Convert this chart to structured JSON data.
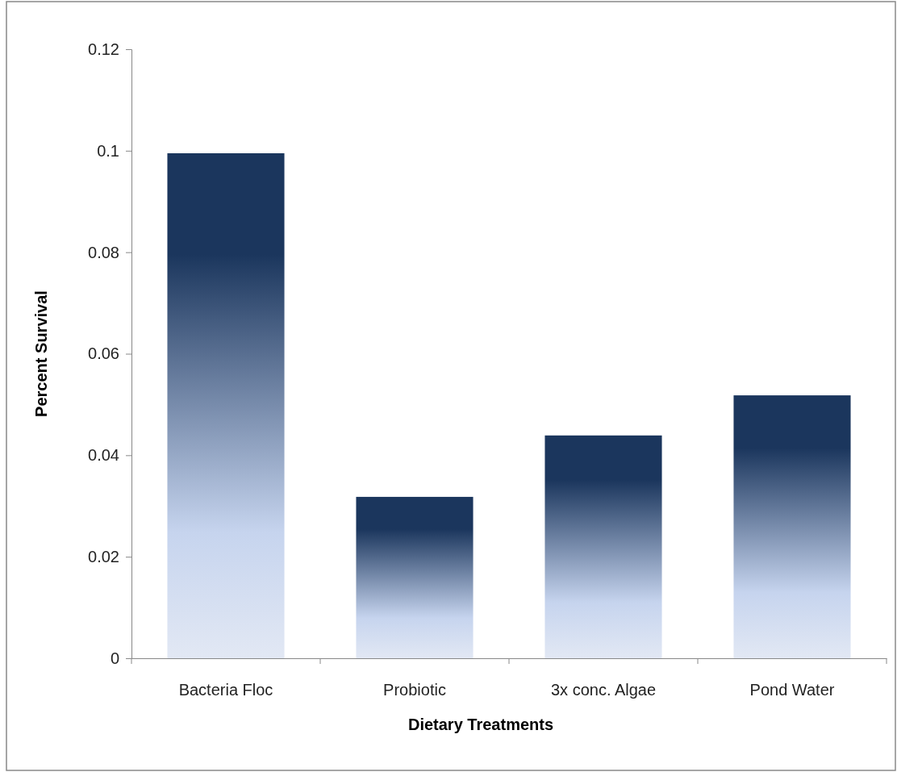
{
  "chart_data": {
    "type": "bar",
    "xlabel": "Dietary Treatments",
    "ylabel": "Percent Survival",
    "categories": [
      "Bacteria Floc",
      "Probiotic",
      "3x conc. Algae",
      "Pond Water"
    ],
    "values": [
      0.0995,
      0.0318,
      0.0439,
      0.0518
    ],
    "color": "#1b365d",
    "ylim": [
      0,
      0.12
    ],
    "yticks": [
      0,
      0.02,
      0.04,
      0.06,
      0.08,
      0.1,
      0.12
    ],
    "grid": false
  }
}
